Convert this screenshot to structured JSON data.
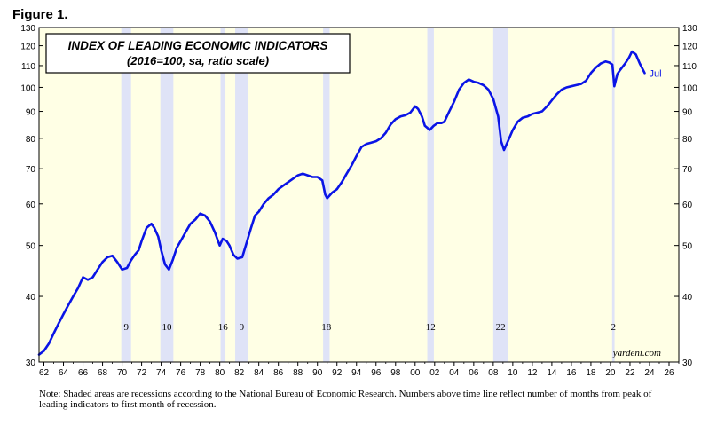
{
  "figure_label": "Figure 1.",
  "note": "Note: Shaded areas are recessions according to the National Bureau of Economic Research. Numbers above time line reflect number of months from peak of leading indicators to first month of recession.",
  "colors": {
    "plot_bg": "#ffffe5",
    "recession": "#dfe3f7",
    "line": "#0a14e6",
    "axis": "#000000"
  },
  "chart_data": {
    "type": "line",
    "title": "INDEX OF LEADING ECONOMIC INDICATORS",
    "subtitle": "(2016=100, sa, ratio scale)",
    "source": "yardeni.com",
    "y_scale": "log",
    "ylim": [
      30,
      130
    ],
    "xlim": [
      1961.5,
      2027
    ],
    "y_ticks": [
      30,
      40,
      50,
      60,
      70,
      80,
      90,
      100,
      110,
      120,
      130
    ],
    "x_ticks": [
      1962,
      1964,
      1966,
      1968,
      1970,
      1972,
      1974,
      1976,
      1978,
      1980,
      1982,
      1984,
      1986,
      1988,
      1990,
      1992,
      1994,
      1996,
      1998,
      2000,
      2002,
      2004,
      2006,
      2008,
      2010,
      2012,
      2014,
      2016,
      2018,
      2020,
      2022,
      2024,
      2026
    ],
    "x_tick_labels": [
      "62",
      "64",
      "66",
      "68",
      "70",
      "72",
      "74",
      "76",
      "78",
      "80",
      "82",
      "84",
      "86",
      "88",
      "90",
      "92",
      "94",
      "96",
      "98",
      "00",
      "02",
      "04",
      "06",
      "08",
      "10",
      "12",
      "14",
      "16",
      "18",
      "20",
      "22",
      "24",
      "26"
    ],
    "end_label": "Jul",
    "recessions": [
      {
        "start": 1969.92,
        "end": 1970.92,
        "lead_months": "9"
      },
      {
        "start": 1973.92,
        "end": 1975.25,
        "lead_months": "10"
      },
      {
        "start": 1980.08,
        "end": 1980.58,
        "lead_months": "16"
      },
      {
        "start": 1981.58,
        "end": 1982.92,
        "lead_months": "9"
      },
      {
        "start": 1990.58,
        "end": 1991.25,
        "lead_months": "18"
      },
      {
        "start": 2001.25,
        "end": 2001.92,
        "lead_months": "12"
      },
      {
        "start": 2008.0,
        "end": 2009.5,
        "lead_months": "22"
      },
      {
        "start": 2020.17,
        "end": 2020.42,
        "lead_months": "2"
      }
    ],
    "series": [
      {
        "name": "Leading Economic Index",
        "x": [
          1961.5,
          1962.0,
          1962.5,
          1963.0,
          1963.5,
          1964.0,
          1964.5,
          1965.0,
          1965.5,
          1966.0,
          1966.5,
          1967.0,
          1967.5,
          1968.0,
          1968.5,
          1969.0,
          1969.5,
          1970.0,
          1970.5,
          1970.9,
          1971.3,
          1971.7,
          1972.0,
          1972.5,
          1973.0,
          1973.3,
          1973.7,
          1974.0,
          1974.4,
          1974.8,
          1975.2,
          1975.6,
          1976.0,
          1976.5,
          1977.0,
          1977.5,
          1978.0,
          1978.5,
          1979.0,
          1979.5,
          1980.0,
          1980.3,
          1980.7,
          1981.0,
          1981.4,
          1981.8,
          1982.3,
          1982.8,
          1983.2,
          1983.6,
          1984.0,
          1984.5,
          1985.0,
          1985.5,
          1986.0,
          1986.5,
          1987.0,
          1987.5,
          1988.0,
          1988.5,
          1989.0,
          1989.5,
          1990.0,
          1990.5,
          1990.8,
          1991.0,
          1991.5,
          1992.0,
          1992.5,
          1993.0,
          1993.5,
          1994.0,
          1994.5,
          1995.0,
          1995.5,
          1996.0,
          1996.5,
          1997.0,
          1997.5,
          1998.0,
          1998.5,
          1999.0,
          1999.5,
          2000.0,
          2000.3,
          2000.7,
          2001.0,
          2001.5,
          2001.9,
          2002.3,
          2002.7,
          2003.0,
          2003.5,
          2004.0,
          2004.5,
          2005.0,
          2005.5,
          2006.0,
          2006.5,
          2007.0,
          2007.5,
          2008.0,
          2008.5,
          2008.8,
          2009.1,
          2009.5,
          2010.0,
          2010.5,
          2011.0,
          2011.5,
          2012.0,
          2012.5,
          2013.0,
          2013.5,
          2014.0,
          2014.5,
          2015.0,
          2015.5,
          2016.0,
          2016.5,
          2017.0,
          2017.5,
          2018.0,
          2018.5,
          2019.0,
          2019.5,
          2019.9,
          2020.2,
          2020.4,
          2020.7,
          2021.0,
          2021.5,
          2021.9,
          2022.2,
          2022.6,
          2023.0,
          2023.5
        ],
        "values": [
          31,
          31.5,
          32.5,
          34,
          35.5,
          37,
          38.5,
          40,
          41.5,
          43.5,
          43,
          43.5,
          45,
          46.5,
          47.5,
          47.8,
          46.5,
          45,
          45.3,
          46.8,
          48,
          49,
          51,
          54,
          55,
          54,
          52,
          49,
          46,
          45,
          47,
          49.5,
          51,
          53,
          55,
          56,
          57.5,
          57,
          55.5,
          53,
          50,
          51.5,
          51,
          50,
          48,
          47.2,
          47.5,
          51,
          54,
          57,
          58,
          60,
          61.5,
          62.5,
          64,
          65,
          66,
          67,
          68,
          68.5,
          68,
          67.5,
          67.5,
          66.5,
          62.5,
          61.5,
          63,
          64,
          66,
          68.5,
          71,
          74,
          77,
          78,
          78.5,
          79,
          80,
          82,
          85,
          87,
          88,
          88.5,
          89.5,
          92,
          91,
          88,
          84.5,
          83,
          84.5,
          85.5,
          85.5,
          86,
          90,
          94,
          99,
          102,
          103.5,
          102.5,
          102,
          101,
          99,
          95,
          88,
          79,
          76,
          79,
          83,
          86,
          87.5,
          88,
          89,
          89.5,
          90,
          92,
          94.5,
          97,
          99,
          100,
          100.5,
          101,
          101.5,
          103,
          106.5,
          109,
          111,
          112,
          111.5,
          110.5,
          100.5,
          106,
          108,
          111,
          114,
          117,
          115.5,
          111,
          106.5
        ]
      }
    ]
  }
}
